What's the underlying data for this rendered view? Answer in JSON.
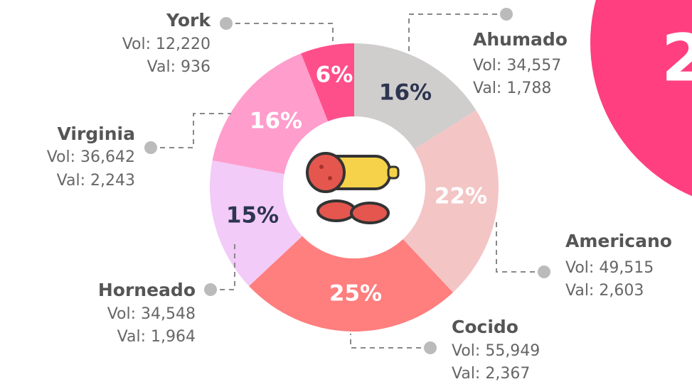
{
  "chart_data": {
    "type": "donut",
    "categories": [
      "Ahumado",
      "Americano",
      "Cocido",
      "Horneado",
      "Virginia",
      "York"
    ],
    "values": [
      16,
      22,
      25,
      15,
      16,
      6
    ],
    "value_labels": [
      "16%",
      "22%",
      "25%",
      "15%",
      "16%",
      "6%"
    ],
    "colors": [
      "#d0cdcd",
      "#f4c5c5",
      "#ff7e7e",
      "#f2cbf8",
      "#ff9dcc",
      "#ff4f8b"
    ],
    "details": [
      [
        "Vol: 34,557",
        "Val: 1,788"
      ],
      [
        "Vol: 49,515",
        "Val: 2,603"
      ],
      [
        "Vol: 55,949",
        "Val: 2,367"
      ],
      [
        "Vol: 34,548",
        "Val: 1,964"
      ],
      [
        "Vol: 36,642",
        "Val: 2,243"
      ],
      [
        "Vol: 12,220",
        "Val: 936"
      ]
    ],
    "annotations": [
      "2"
    ]
  }
}
